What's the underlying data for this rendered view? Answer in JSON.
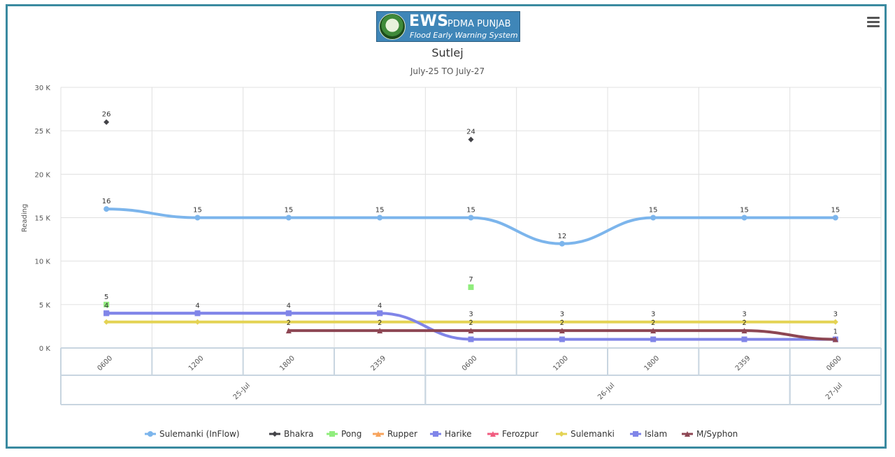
{
  "logo": {
    "ews": "EWS",
    "org": "PDMA PUNJAB",
    "tagline": "Flood Early Warning System"
  },
  "menu_icon": "hamburger-menu-icon",
  "chart_data": {
    "type": "line",
    "title": "Sutlej",
    "subtitle": "July-25 TO July-27",
    "ylabel": "Reading",
    "xlabel": "",
    "ylim": [
      0,
      30000
    ],
    "yticks": [
      0,
      5000,
      10000,
      15000,
      20000,
      25000,
      30000
    ],
    "ytick_labels": [
      "0 K",
      "5 K",
      "10 K",
      "15 K",
      "20 K",
      "25 K",
      "30 K"
    ],
    "categories": [
      "0600",
      "1200",
      "1800",
      "2359",
      "0600",
      "1200",
      "1800",
      "2359",
      "0600"
    ],
    "date_groups": [
      {
        "label": "25-Jul",
        "count": 4
      },
      {
        "label": "26-Jul",
        "count": 4
      },
      {
        "label": "27-Jul",
        "count": 1
      }
    ],
    "grid": true,
    "legend_position": "bottom-center",
    "series": [
      {
        "name": "Sulemanki (InFlow)",
        "color": "#7cb5ec",
        "style": "line",
        "marker": "circle",
        "width": 4,
        "values": [
          16000,
          15000,
          15000,
          15000,
          15000,
          12000,
          15000,
          15000,
          15000
        ],
        "labels": [
          "16",
          "15",
          "15",
          "15",
          "15",
          "12",
          "15",
          "15",
          "15"
        ]
      },
      {
        "name": "Bhakra",
        "color": "#434348",
        "style": "points",
        "marker": "diamond",
        "width": 2,
        "values": [
          26000,
          null,
          null,
          null,
          24000,
          null,
          null,
          null,
          null
        ],
        "labels": [
          "26",
          "",
          "",
          "",
          "24",
          "",
          "",
          "",
          ""
        ]
      },
      {
        "name": "Pong",
        "color": "#90ed7d",
        "style": "points",
        "marker": "square",
        "width": 2,
        "values": [
          5000,
          null,
          null,
          null,
          7000,
          null,
          null,
          null,
          null
        ],
        "labels": [
          "5",
          "",
          "",
          "",
          "7",
          "",
          "",
          "",
          ""
        ]
      },
      {
        "name": "Rupper",
        "color": "#f7a35c",
        "style": "points",
        "marker": "triangle",
        "width": 2,
        "values": [
          null,
          null,
          null,
          null,
          null,
          null,
          null,
          null,
          null
        ],
        "labels": [
          "",
          "",
          "",
          "",
          "",
          "",
          "",
          "",
          ""
        ]
      },
      {
        "name": "Harike",
        "color": "#8085e9",
        "style": "line",
        "marker": "square",
        "width": 4,
        "values": [
          4000,
          4000,
          4000,
          4000,
          null,
          null,
          null,
          null,
          null
        ],
        "labels": [
          "",
          "4",
          "4",
          "4",
          "",
          "",
          "",
          "",
          ""
        ]
      },
      {
        "name": "Ferozpur",
        "color": "#f15c80",
        "style": "points",
        "marker": "triangle",
        "width": 2,
        "values": [
          null,
          null,
          null,
          null,
          null,
          null,
          null,
          null,
          null
        ],
        "labels": [
          "",
          "",
          "",
          "",
          "",
          "",
          "",
          "",
          ""
        ]
      },
      {
        "name": "Sulemanki",
        "color": "#e4d354",
        "style": "line",
        "marker": "diamond",
        "width": 4,
        "values": [
          3000,
          3000,
          3000,
          3000,
          3000,
          3000,
          3000,
          3000,
          3000
        ],
        "labels": [
          "",
          "",
          "",
          "",
          "3",
          "3",
          "3",
          "3",
          "3"
        ]
      },
      {
        "name": "Islam",
        "color": "#8085e8",
        "style": "line",
        "marker": "square",
        "width": 4,
        "values": [
          4000,
          4000,
          4000,
          4000,
          1000,
          1000,
          1000,
          1000,
          1000
        ],
        "labels": [
          "4",
          "",
          "",
          "",
          "",
          "",
          "",
          "",
          ""
        ]
      },
      {
        "name": "M/Syphon",
        "color": "#8d4653",
        "style": "line",
        "marker": "triangle",
        "width": 4,
        "values": [
          null,
          null,
          2000,
          2000,
          2000,
          2000,
          2000,
          2000,
          1000
        ],
        "labels": [
          "",
          "",
          "2",
          "2",
          "2",
          "2",
          "2",
          "2",
          "1"
        ]
      }
    ]
  }
}
